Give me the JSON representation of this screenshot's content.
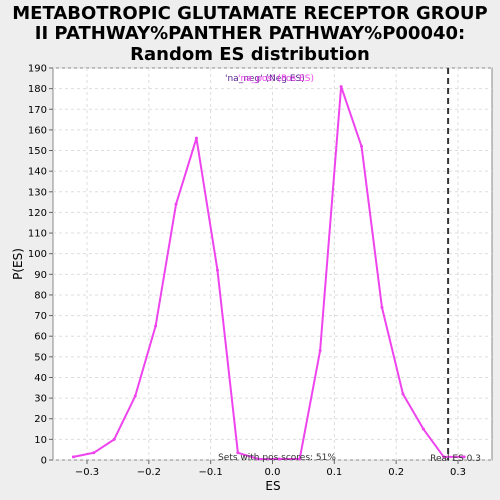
{
  "chart_data": {
    "type": "line",
    "title_lines": [
      "METABOTROPIC GLUTAMATE RECEPTOR GROUP",
      "II PATHWAY%PANTHER PATHWAY%P00040:",
      "Random ES distribution"
    ],
    "xlabel": "ES",
    "ylabel": "P(ES)",
    "xlim": [
      -0.355,
      0.355
    ],
    "ylim": [
      0,
      190
    ],
    "x_ticks": [
      -0.3,
      -0.2,
      -0.1,
      0.0,
      0.1,
      0.2,
      0.3
    ],
    "x_tick_labels": [
      "−0.3",
      "−0.2",
      "−0.1",
      "0.0",
      "0.1",
      "0.2",
      "0.3"
    ],
    "y_ticks": [
      0,
      10,
      20,
      30,
      40,
      50,
      60,
      70,
      80,
      90,
      100,
      110,
      120,
      130,
      140,
      150,
      160,
      170,
      180,
      190
    ],
    "y_tick_labels": [
      "0",
      "10",
      "20",
      "30",
      "40",
      "50",
      "60",
      "70",
      "80",
      "90",
      "100",
      "110",
      "120",
      "130",
      "140",
      "150",
      "160",
      "170",
      "180",
      "190"
    ],
    "grid": true,
    "series": [
      {
        "color": "#ee44ee",
        "x": [
          -0.322,
          -0.289,
          -0.256,
          -0.222,
          -0.189,
          -0.156,
          -0.123,
          -0.089,
          -0.056,
          -0.023,
          0.011,
          0.044,
          0.077,
          0.111,
          0.144,
          0.177,
          0.211,
          0.244,
          0.277,
          0.31
        ],
        "y": [
          1.5,
          3.5,
          10,
          31,
          65,
          124,
          156,
          92,
          3.5,
          0.5,
          0.5,
          0.5,
          53,
          181,
          152,
          74,
          32,
          15,
          1.5,
          1.5
        ]
      }
    ],
    "legend": {
      "placement": "top-center",
      "text_dark": "'na_neg' (Neg ES)",
      "text_pink": "'na_pos' (Pos ES)",
      "color_dark": "#551a8b",
      "color_pink": "#ee44ee"
    },
    "real_es": {
      "value": 0.284,
      "label": "Real ES 0.3",
      "color": "#333333"
    },
    "annotation": "Sets with pos scores: 51%"
  }
}
